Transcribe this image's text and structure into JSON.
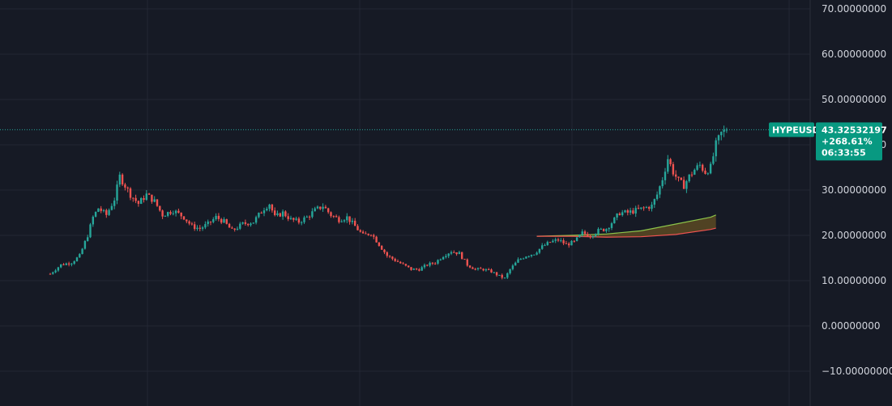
{
  "colors": {
    "background": "#161a25",
    "grid": "#232733",
    "axis_text": "#d1d4dc",
    "up": "#26a69a",
    "down": "#ef5350",
    "price_line": "#26a69a",
    "tag_bg": "#089981",
    "band_upper": "#8bc34a",
    "band_lower": "#ef5350",
    "band_fill": "#5b4a23"
  },
  "price_tag": {
    "symbol": "HYPEUSD",
    "price": "43.32532197",
    "change": "+268.61%",
    "countdown": "06:33:55"
  },
  "chart_data": {
    "type": "candlestick",
    "ylim": [
      -12,
      72
    ],
    "y_ticks": [
      {
        "value": 70,
        "label": "70.00000000"
      },
      {
        "value": 60,
        "label": "60.00000000"
      },
      {
        "value": 50,
        "label": "50.00000000"
      },
      {
        "value": 40,
        "label": "40.00000000"
      },
      {
        "value": 30,
        "label": "30.00000000"
      },
      {
        "value": 20,
        "label": "20.00000000"
      },
      {
        "value": 10,
        "label": "10.00000000"
      },
      {
        "value": 0,
        "label": "0.00000000"
      },
      {
        "value": -10,
        "label": "−10.00000000"
      }
    ],
    "last_price": 43.33,
    "close_path": [
      [
        0,
        11.5
      ],
      [
        4,
        13.5
      ],
      [
        8,
        14.0
      ],
      [
        11,
        15.5
      ],
      [
        14,
        20.0
      ],
      [
        16,
        24.0
      ],
      [
        18,
        26.0
      ],
      [
        21,
        24.5
      ],
      [
        24,
        28.0
      ],
      [
        26,
        33.0
      ],
      [
        28,
        31.0
      ],
      [
        30,
        29.0
      ],
      [
        33,
        27.0
      ],
      [
        36,
        29.0
      ],
      [
        39,
        27.5
      ],
      [
        42,
        24.5
      ],
      [
        46,
        25.5
      ],
      [
        50,
        24.0
      ],
      [
        53,
        22.0
      ],
      [
        56,
        21.5
      ],
      [
        59,
        22.5
      ],
      [
        62,
        24.0
      ],
      [
        65,
        23.0
      ],
      [
        68,
        21.0
      ],
      [
        72,
        22.5
      ],
      [
        76,
        23.0
      ],
      [
        80,
        26.0
      ],
      [
        82,
        27.0
      ],
      [
        84,
        24.0
      ],
      [
        87,
        25.0
      ],
      [
        90,
        23.5
      ],
      [
        93,
        23.0
      ],
      [
        96,
        24.0
      ],
      [
        99,
        25.5
      ],
      [
        102,
        26.5
      ],
      [
        105,
        24.5
      ],
      [
        108,
        23.5
      ],
      [
        111,
        24.0
      ],
      [
        114,
        22.0
      ],
      [
        117,
        20.0
      ],
      [
        120,
        20.5
      ],
      [
        123,
        18.0
      ],
      [
        126,
        15.5
      ],
      [
        129,
        14.5
      ],
      [
        132,
        13.5
      ],
      [
        135,
        12.5
      ],
      [
        138,
        12.5
      ],
      [
        141,
        13.5
      ],
      [
        144,
        14.0
      ],
      [
        147,
        15.5
      ],
      [
        150,
        16.5
      ],
      [
        153,
        16.0
      ],
      [
        156,
        13.5
      ],
      [
        159,
        12.5
      ],
      [
        162,
        12.5
      ],
      [
        165,
        12.0
      ],
      [
        168,
        11.0
      ],
      [
        170,
        10.5
      ],
      [
        172,
        12.5
      ],
      [
        175,
        14.5
      ],
      [
        178,
        15.5
      ],
      [
        181,
        16.0
      ],
      [
        184,
        17.5
      ],
      [
        187,
        18.5
      ],
      [
        190,
        19.0
      ],
      [
        193,
        18.0
      ],
      [
        196,
        18.5
      ],
      [
        199,
        20.5
      ],
      [
        202,
        20.0
      ],
      [
        205,
        21.0
      ],
      [
        208,
        21.5
      ],
      [
        211,
        23.5
      ],
      [
        213,
        25.0
      ],
      [
        216,
        25.0
      ],
      [
        219,
        25.5
      ],
      [
        222,
        26.0
      ],
      [
        225,
        26.5
      ],
      [
        227,
        29.0
      ],
      [
        229,
        32.5
      ],
      [
        231,
        37.0
      ],
      [
        233,
        34.0
      ],
      [
        235,
        32.0
      ],
      [
        237,
        31.0
      ],
      [
        239,
        33.0
      ],
      [
        241,
        34.5
      ],
      [
        243,
        35.5
      ],
      [
        245,
        34.0
      ],
      [
        247,
        35.0
      ],
      [
        249,
        40.0
      ],
      [
        251,
        42.5
      ],
      [
        253,
        43.33
      ]
    ],
    "band": {
      "x": [
        182,
        195,
        208,
        221,
        234,
        247,
        249
      ],
      "upper": [
        19.8,
        20.0,
        20.3,
        21.0,
        22.5,
        24.0,
        24.5
      ],
      "lower": [
        19.8,
        19.8,
        19.6,
        19.7,
        20.2,
        21.3,
        21.6
      ]
    }
  }
}
